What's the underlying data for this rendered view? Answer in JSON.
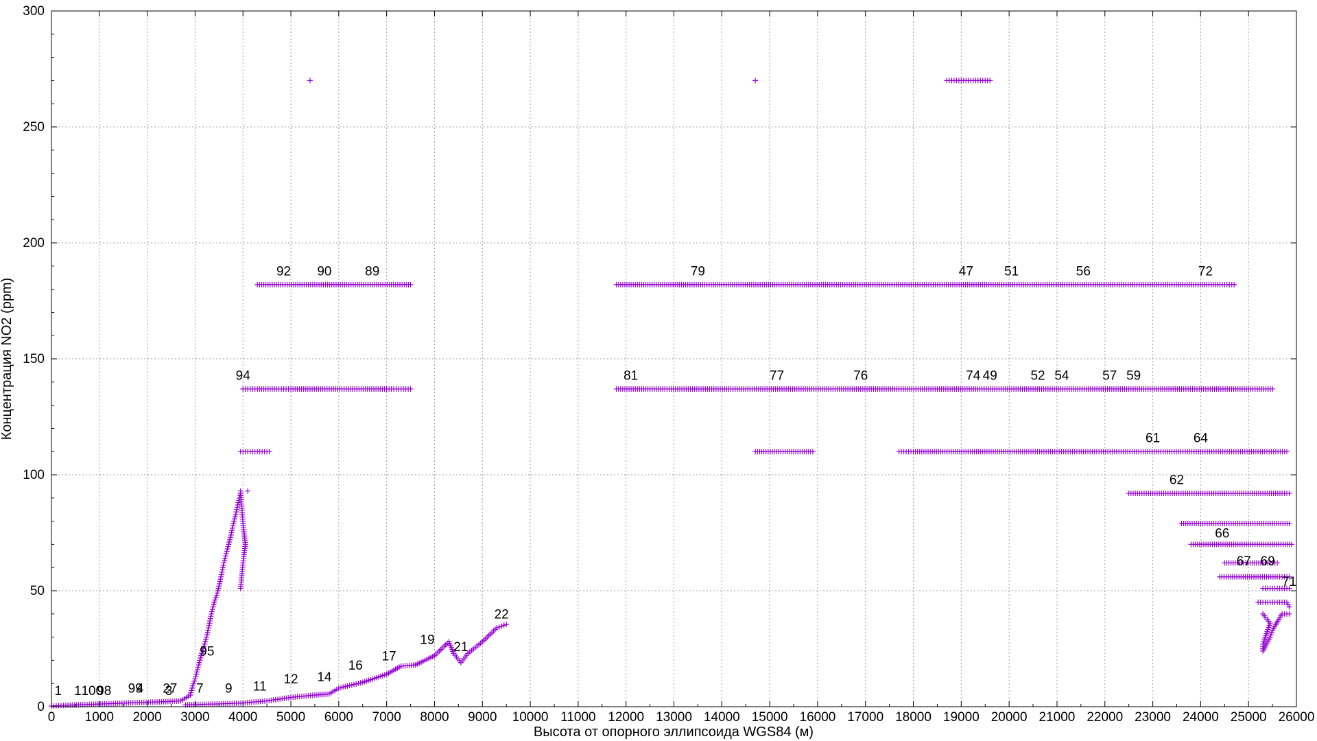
{
  "chart_data": {
    "type": "scatter",
    "title": "",
    "xlabel": "Высота от опорного эллипсоида WGS84 (м)",
    "ylabel": "Концентрация NO2 (ppm)",
    "xlim": [
      0,
      26000
    ],
    "ylim": [
      0,
      300
    ],
    "x_ticks": [
      0,
      1000,
      2000,
      3000,
      4000,
      5000,
      6000,
      7000,
      8000,
      9000,
      10000,
      11000,
      12000,
      13000,
      14000,
      15000,
      16000,
      17000,
      18000,
      19000,
      20000,
      21000,
      22000,
      23000,
      24000,
      25000,
      26000
    ],
    "y_ticks": [
      0,
      50,
      100,
      150,
      200,
      250,
      300
    ],
    "grid": true,
    "legend": "none",
    "marker": "plus",
    "color": "#9400d3",
    "series": [
      {
        "points": [
          [
            0,
            0.3
          ],
          [
            300,
            0.6
          ],
          [
            700,
            0.9
          ],
          [
            1200,
            1.3
          ],
          [
            1700,
            1.7
          ],
          [
            2300,
            2.1
          ],
          [
            2700,
            2.5
          ],
          [
            2900,
            5
          ],
          [
            2950,
            9
          ],
          [
            3000,
            12
          ],
          [
            3050,
            16
          ],
          [
            3100,
            20
          ],
          [
            3150,
            24
          ],
          [
            3200,
            27
          ],
          [
            3250,
            31
          ],
          [
            3300,
            36
          ],
          [
            3350,
            41
          ],
          [
            3400,
            45
          ],
          [
            3450,
            48
          ],
          [
            3500,
            52
          ],
          [
            3550,
            57
          ],
          [
            3600,
            62
          ],
          [
            3650,
            66
          ],
          [
            3700,
            70
          ],
          [
            3750,
            74
          ],
          [
            3800,
            79
          ],
          [
            3850,
            83
          ],
          [
            3900,
            88
          ],
          [
            3950,
            92
          ]
        ]
      },
      {
        "points": [
          [
            2800,
            0.8
          ],
          [
            3500,
            1.2
          ],
          [
            4000,
            1.6
          ],
          [
            4500,
            2.5
          ],
          [
            5000,
            4
          ],
          [
            5500,
            5
          ],
          [
            5800,
            5.5
          ],
          [
            6000,
            8
          ],
          [
            6500,
            10.5
          ],
          [
            7000,
            14
          ],
          [
            7300,
            17.5
          ],
          [
            7600,
            18
          ],
          [
            8000,
            22
          ],
          [
            8200,
            26
          ],
          [
            8300,
            28
          ],
          [
            8400,
            23
          ],
          [
            8550,
            19
          ],
          [
            8700,
            23
          ],
          [
            9000,
            28
          ],
          [
            9300,
            34
          ],
          [
            9500,
            35.5
          ]
        ]
      },
      {
        "points": [
          [
            3950,
            93
          ],
          [
            4000,
            79
          ],
          [
            4050,
            70
          ],
          [
            4000,
            62
          ],
          [
            3950,
            51
          ],
          [
            4100,
            93
          ]
        ]
      },
      {
        "points": [
          [
            3950,
            110
          ],
          [
            4100,
            110
          ],
          [
            4250,
            110
          ],
          [
            4400,
            110
          ],
          [
            4550,
            110
          ]
        ]
      },
      {
        "points": [
          [
            4000,
            137
          ],
          [
            4300,
            137
          ],
          [
            4700,
            137
          ],
          [
            5000,
            137
          ],
          [
            5400,
            137
          ],
          [
            5800,
            137
          ],
          [
            6200,
            137
          ],
          [
            6600,
            137
          ],
          [
            7000,
            137
          ],
          [
            7300,
            137
          ],
          [
            7500,
            137
          ]
        ]
      },
      {
        "points": [
          [
            4300,
            182
          ],
          [
            4700,
            182
          ],
          [
            5100,
            182
          ],
          [
            5500,
            182
          ],
          [
            5900,
            182
          ],
          [
            6300,
            182
          ],
          [
            6700,
            182
          ],
          [
            7100,
            182
          ],
          [
            7500,
            182
          ]
        ]
      },
      {
        "points": [
          [
            5400,
            270
          ],
          [
            14700,
            270
          ],
          [
            18700,
            270
          ],
          [
            19000,
            270
          ],
          [
            19300,
            270
          ],
          [
            19600,
            270
          ]
        ]
      },
      {
        "points": [
          [
            11800,
            182
          ],
          [
            12500,
            182
          ],
          [
            13200,
            182
          ],
          [
            14000,
            182
          ],
          [
            14800,
            182
          ],
          [
            15500,
            182
          ],
          [
            16300,
            182
          ],
          [
            17200,
            182
          ],
          [
            18000,
            182
          ],
          [
            18600,
            182
          ],
          [
            19000,
            182
          ],
          [
            19400,
            182
          ],
          [
            19800,
            182
          ],
          [
            20300,
            182
          ],
          [
            20800,
            182
          ],
          [
            21300,
            182
          ],
          [
            21800,
            182
          ],
          [
            22300,
            182
          ],
          [
            22900,
            182
          ],
          [
            23400,
            182
          ],
          [
            23900,
            182
          ],
          [
            24400,
            182
          ],
          [
            24700,
            182
          ]
        ]
      },
      {
        "points": [
          [
            11800,
            137
          ],
          [
            12500,
            137
          ],
          [
            13300,
            137
          ],
          [
            14100,
            137
          ],
          [
            14900,
            137
          ],
          [
            15700,
            137
          ],
          [
            16500,
            137
          ],
          [
            17300,
            137
          ],
          [
            18100,
            137
          ],
          [
            18900,
            137
          ],
          [
            19700,
            137
          ],
          [
            20500,
            137
          ],
          [
            21300,
            137
          ],
          [
            22100,
            137
          ],
          [
            22900,
            137
          ],
          [
            23600,
            137
          ],
          [
            24200,
            137
          ],
          [
            25000,
            137
          ],
          [
            25500,
            137
          ]
        ]
      },
      {
        "points": [
          [
            14700,
            110
          ],
          [
            15900,
            110
          ],
          [
            17700,
            110
          ],
          [
            18000,
            110
          ],
          [
            19100,
            110
          ],
          [
            20500,
            110
          ],
          [
            21000,
            110
          ],
          [
            21600,
            110
          ],
          [
            22200,
            110
          ],
          [
            22800,
            110
          ],
          [
            23400,
            110
          ],
          [
            24000,
            110
          ],
          [
            24600,
            110
          ],
          [
            25200,
            110
          ],
          [
            25800,
            110
          ]
        ]
      },
      {
        "points": [
          [
            22500,
            92
          ],
          [
            23000,
            92
          ],
          [
            23500,
            92
          ],
          [
            24000,
            92
          ],
          [
            24500,
            92
          ],
          [
            25700,
            92
          ],
          [
            25850,
            92
          ]
        ]
      },
      {
        "points": [
          [
            23600,
            79
          ],
          [
            24000,
            79
          ],
          [
            24500,
            79
          ],
          [
            25000,
            79
          ],
          [
            25500,
            79
          ],
          [
            25850,
            79
          ]
        ]
      },
      {
        "points": [
          [
            23800,
            70
          ],
          [
            24200,
            70
          ],
          [
            24600,
            70
          ],
          [
            25000,
            70
          ],
          [
            25500,
            70
          ],
          [
            25900,
            70
          ]
        ]
      },
      {
        "points": [
          [
            24500,
            62
          ],
          [
            24900,
            62
          ],
          [
            25300,
            62
          ],
          [
            25600,
            62
          ]
        ]
      },
      {
        "points": [
          [
            24400,
            56
          ],
          [
            24800,
            56
          ],
          [
            25200,
            56
          ],
          [
            25600,
            56
          ],
          [
            25850,
            56
          ]
        ]
      },
      {
        "points": [
          [
            25300,
            51
          ],
          [
            25500,
            51
          ],
          [
            25700,
            51
          ],
          [
            25850,
            51
          ]
        ]
      },
      {
        "points": [
          [
            25200,
            45
          ],
          [
            25400,
            45
          ],
          [
            25600,
            45
          ],
          [
            25800,
            45
          ],
          [
            25850,
            43
          ]
        ]
      },
      {
        "points": [
          [
            25300,
            40
          ],
          [
            25450,
            36
          ],
          [
            25300,
            27
          ],
          [
            25300,
            24
          ],
          [
            25450,
            30
          ],
          [
            25500,
            33
          ],
          [
            25700,
            40
          ],
          [
            25850,
            40
          ]
        ]
      }
    ],
    "annotations": [
      {
        "text": "1",
        "x": 140,
        "y": 5
      },
      {
        "text": "1",
        "x": 550,
        "y": 5
      },
      {
        "text": "100",
        "x": 850,
        "y": 5
      },
      {
        "text": "98",
        "x": 1100,
        "y": 5
      },
      {
        "text": "99",
        "x": 1750,
        "y": 6
      },
      {
        "text": "4",
        "x": 1850,
        "y": 6
      },
      {
        "text": "2",
        "x": 2400,
        "y": 6
      },
      {
        "text": "3",
        "x": 2450,
        "y": 5
      },
      {
        "text": "7",
        "x": 2550,
        "y": 6
      },
      {
        "text": "7",
        "x": 3100,
        "y": 6
      },
      {
        "text": "9",
        "x": 3700,
        "y": 6
      },
      {
        "text": "95",
        "x": 3250,
        "y": 22
      },
      {
        "text": "11",
        "x": 4350,
        "y": 7
      },
      {
        "text": "12",
        "x": 5000,
        "y": 10
      },
      {
        "text": "14",
        "x": 5700,
        "y": 11
      },
      {
        "text": "16",
        "x": 6350,
        "y": 16
      },
      {
        "text": "17",
        "x": 7050,
        "y": 20
      },
      {
        "text": "19",
        "x": 7850,
        "y": 27
      },
      {
        "text": "21",
        "x": 8550,
        "y": 24
      },
      {
        "text": "22",
        "x": 9400,
        "y": 38
      },
      {
        "text": "94",
        "x": 4000,
        "y": 141
      },
      {
        "text": "92",
        "x": 4850,
        "y": 186
      },
      {
        "text": "90",
        "x": 5700,
        "y": 186
      },
      {
        "text": "89",
        "x": 6700,
        "y": 186
      },
      {
        "text": "79",
        "x": 13500,
        "y": 186
      },
      {
        "text": "47",
        "x": 19100,
        "y": 186
      },
      {
        "text": "51",
        "x": 20050,
        "y": 186
      },
      {
        "text": "56",
        "x": 21550,
        "y": 186
      },
      {
        "text": "72",
        "x": 24100,
        "y": 186
      },
      {
        "text": "81",
        "x": 12100,
        "y": 141
      },
      {
        "text": "77",
        "x": 15150,
        "y": 141
      },
      {
        "text": "76",
        "x": 16900,
        "y": 141
      },
      {
        "text": "74",
        "x": 19250,
        "y": 141
      },
      {
        "text": "49",
        "x": 19600,
        "y": 141
      },
      {
        "text": "52",
        "x": 20600,
        "y": 141
      },
      {
        "text": "54",
        "x": 21100,
        "y": 141
      },
      {
        "text": "57",
        "x": 22100,
        "y": 141
      },
      {
        "text": "59",
        "x": 22600,
        "y": 141
      },
      {
        "text": "61",
        "x": 23000,
        "y": 114
      },
      {
        "text": "64",
        "x": 24000,
        "y": 114
      },
      {
        "text": "62",
        "x": 23500,
        "y": 96
      },
      {
        "text": "66",
        "x": 24450,
        "y": 73
      },
      {
        "text": "67",
        "x": 24900,
        "y": 61
      },
      {
        "text": "69",
        "x": 25400,
        "y": 61
      },
      {
        "text": "71",
        "x": 25850,
        "y": 52
      }
    ]
  }
}
